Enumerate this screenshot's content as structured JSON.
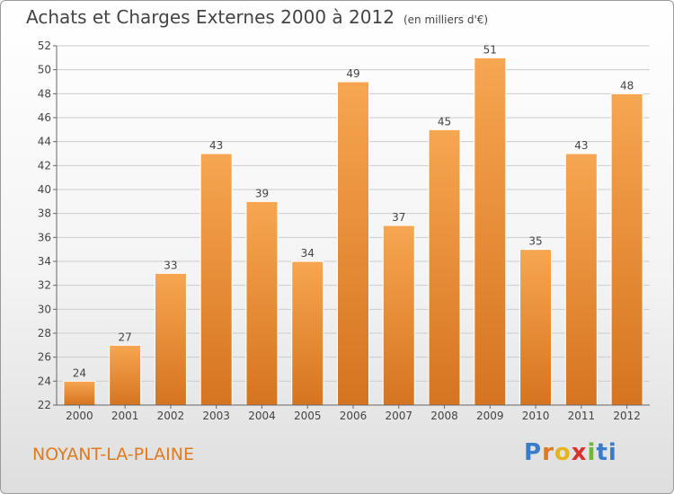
{
  "header": {
    "title": "Achats et Charges Externes 2000 à 2012",
    "unit": "(en milliers d'€)"
  },
  "footer": {
    "town": "NOYANT-LA-PLAINE",
    "logo": "Proxiti",
    "logo_colors": [
      "#3a7cc9",
      "#e07a1e",
      "#e8b41c",
      "#d6322e",
      "#72b33a",
      "#3a7cc9"
    ]
  },
  "colors": {
    "bar_light": "#f7a651",
    "bar_dark": "#d6741f",
    "grid": "#cccccc",
    "text": "#444444",
    "town": "#e07a1e"
  },
  "chart_data": {
    "type": "bar",
    "categories": [
      "2000",
      "2001",
      "2002",
      "2003",
      "2004",
      "2005",
      "2006",
      "2007",
      "2008",
      "2009",
      "2010",
      "2011",
      "2012"
    ],
    "values": [
      24,
      27,
      33,
      43,
      39,
      34,
      49,
      37,
      45,
      51,
      35,
      43,
      48
    ],
    "title": "Achats et Charges Externes 2000 à 2012",
    "xlabel": "",
    "ylabel": "",
    "ylim": [
      22,
      52
    ],
    "yticks": [
      22,
      24,
      26,
      28,
      30,
      32,
      34,
      36,
      38,
      40,
      42,
      44,
      46,
      48,
      50,
      52
    ],
    "grid": true,
    "legend": "none"
  }
}
